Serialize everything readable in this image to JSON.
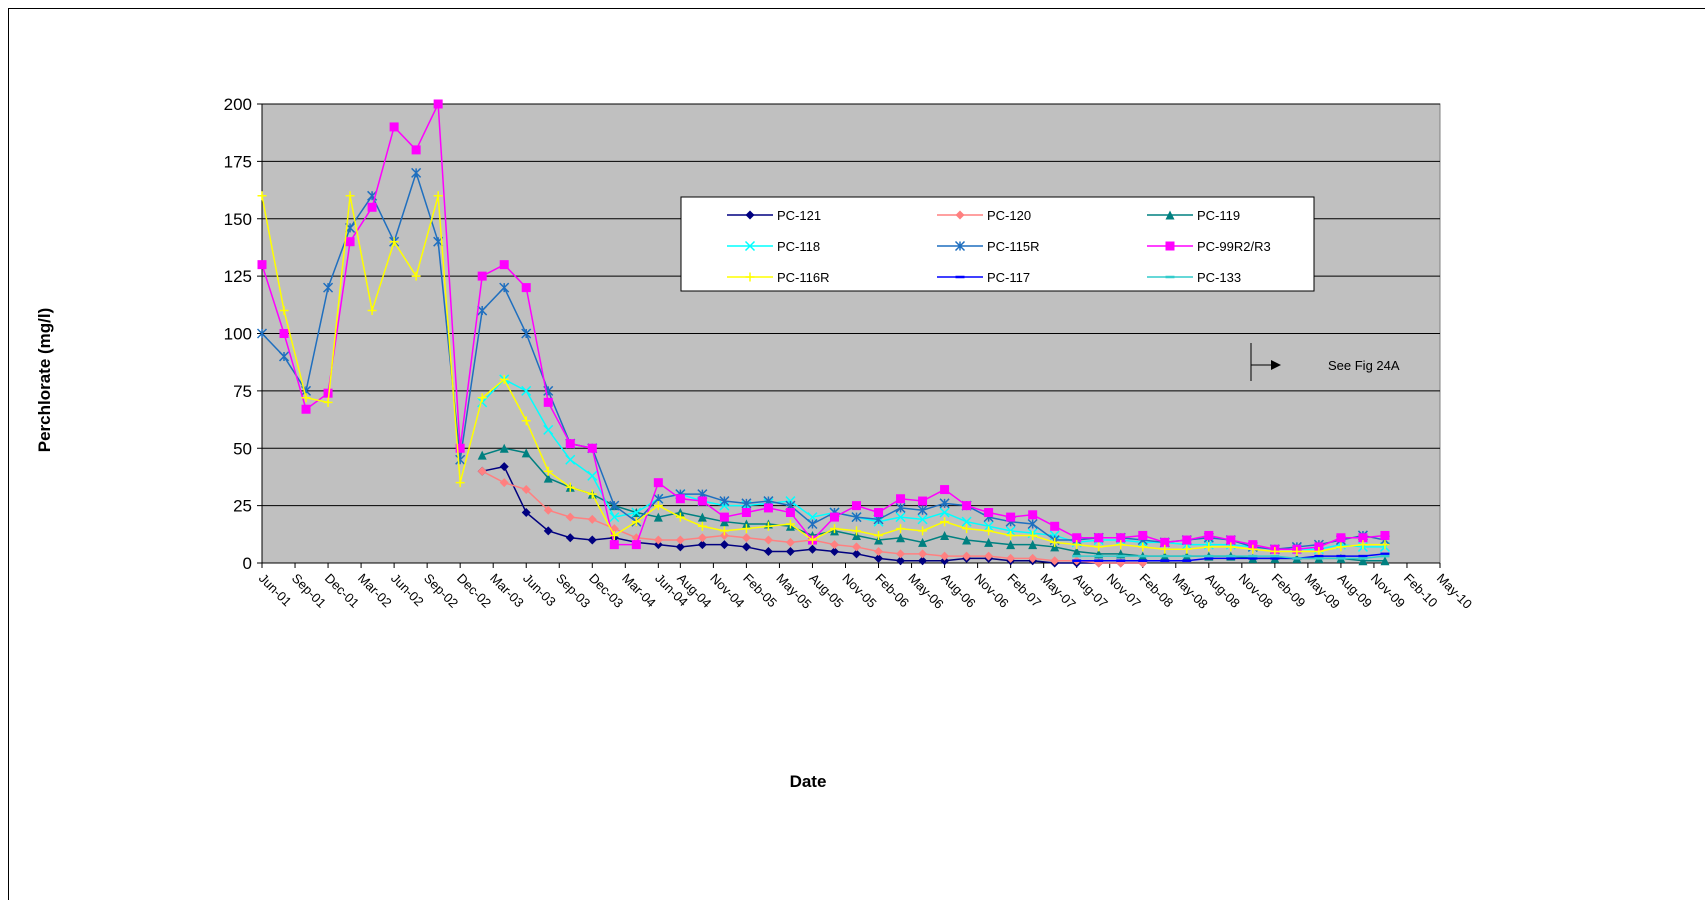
{
  "chart_data": {
    "type": "line",
    "y_label": "Perchlorate (mg/l)",
    "x_label": "Date",
    "annotation": "See Fig 24A",
    "x": [
      "2001-06",
      "2001-08",
      "2001-10",
      "2001-12",
      "2002-02",
      "2002-04",
      "2002-06",
      "2002-08",
      "2002-10",
      "2002-12",
      "2003-02",
      "2003-04",
      "2003-06",
      "2003-08",
      "2003-10",
      "2003-12",
      "2004-02",
      "2004-04",
      "2004-06",
      "2004-08",
      "2004-10",
      "2004-12",
      "2005-02",
      "2005-04",
      "2005-06",
      "2005-08",
      "2005-10",
      "2005-12",
      "2006-02",
      "2006-04",
      "2006-06",
      "2006-08",
      "2006-10",
      "2006-12",
      "2007-02",
      "2007-04",
      "2007-06",
      "2007-08",
      "2007-10",
      "2007-12",
      "2008-02",
      "2008-04",
      "2008-06",
      "2008-08",
      "2008-10",
      "2008-12",
      "2009-02",
      "2009-04",
      "2009-06",
      "2009-08",
      "2009-10",
      "2009-12"
    ],
    "series": [
      {
        "name": "PC-121",
        "color": "#000080",
        "marker": "diamond",
        "values": [
          null,
          null,
          null,
          null,
          null,
          null,
          null,
          null,
          null,
          null,
          40,
          42,
          22,
          14,
          11,
          10,
          11,
          9,
          8,
          7,
          8,
          8,
          7,
          5,
          5,
          6,
          5,
          4,
          2,
          1,
          1,
          1,
          2,
          2,
          1,
          1,
          0,
          0,
          0,
          0,
          0,
          null,
          null,
          null,
          null,
          null,
          null,
          null,
          null,
          null,
          null,
          null
        ]
      },
      {
        "name": "PC-120",
        "color": "#ff8080",
        "marker": "diamond",
        "values": [
          null,
          null,
          null,
          null,
          null,
          null,
          null,
          null,
          null,
          null,
          40,
          35,
          32,
          23,
          20,
          19,
          15,
          11,
          10,
          10,
          11,
          12,
          11,
          10,
          9,
          10,
          8,
          7,
          5,
          4,
          4,
          3,
          3,
          3,
          2,
          2,
          1,
          1,
          0,
          0,
          0,
          null,
          null,
          null,
          null,
          null,
          null,
          null,
          null,
          null,
          null,
          null
        ]
      },
      {
        "name": "PC-119",
        "color": "#008080",
        "marker": "triangle",
        "values": [
          null,
          null,
          null,
          null,
          null,
          null,
          null,
          null,
          null,
          null,
          47,
          50,
          48,
          37,
          33,
          30,
          25,
          22,
          20,
          22,
          20,
          18,
          17,
          17,
          16,
          12,
          14,
          12,
          10,
          11,
          9,
          12,
          10,
          9,
          8,
          8,
          7,
          5,
          4,
          4,
          3,
          3,
          3,
          3,
          3,
          2,
          2,
          2,
          2,
          2,
          1,
          1
        ]
      },
      {
        "name": "PC-118",
        "color": "#00ffff",
        "marker": "x",
        "values": [
          null,
          null,
          null,
          null,
          null,
          null,
          null,
          null,
          null,
          null,
          70,
          80,
          75,
          58,
          45,
          38,
          20,
          22,
          28,
          30,
          27,
          25,
          25,
          26,
          27,
          20,
          22,
          20,
          18,
          20,
          19,
          22,
          18,
          16,
          14,
          13,
          12,
          9,
          10,
          10,
          9,
          9,
          8,
          8,
          8,
          7,
          6,
          6,
          6,
          8,
          7,
          7
        ]
      },
      {
        "name": "PC-115R",
        "color": "#1f6fbf",
        "marker": "star",
        "values": [
          100,
          90,
          75,
          120,
          146,
          160,
          140,
          170,
          140,
          45,
          110,
          120,
          100,
          75,
          52,
          50,
          25,
          18,
          28,
          30,
          30,
          27,
          26,
          27,
          25,
          17,
          22,
          20,
          19,
          24,
          23,
          26,
          25,
          20,
          18,
          17,
          10,
          10,
          11,
          11,
          10,
          9,
          10,
          11,
          10,
          7,
          6,
          7,
          8,
          10,
          12,
          10
        ]
      },
      {
        "name": "PC-99R2/R3",
        "color": "#ff00ff",
        "marker": "square",
        "values": [
          130,
          100,
          67,
          74,
          140,
          155,
          190,
          180,
          200,
          50,
          125,
          130,
          120,
          70,
          52,
          50,
          8,
          8,
          35,
          28,
          27,
          20,
          22,
          24,
          22,
          10,
          20,
          25,
          22,
          28,
          27,
          32,
          25,
          22,
          20,
          21,
          16,
          11,
          11,
          11,
          12,
          9,
          10,
          12,
          10,
          8,
          6,
          6,
          7,
          11,
          11,
          12
        ]
      },
      {
        "name": "PC-116R",
        "color": "#ffff00",
        "marker": "plus",
        "values": [
          160,
          110,
          72,
          70,
          160,
          110,
          140,
          125,
          160,
          35,
          72,
          80,
          62,
          40,
          33,
          30,
          12,
          18,
          25,
          20,
          16,
          14,
          15,
          16,
          17,
          10,
          15,
          14,
          12,
          15,
          14,
          18,
          15,
          14,
          12,
          12,
          9,
          8,
          7,
          8,
          7,
          6,
          6,
          7,
          7,
          6,
          5,
          5,
          5,
          7,
          8,
          8
        ]
      },
      {
        "name": "PC-117",
        "color": "#0000ff",
        "marker": "dash",
        "values": [
          null,
          null,
          null,
          null,
          null,
          null,
          null,
          null,
          null,
          null,
          null,
          null,
          null,
          null,
          null,
          null,
          null,
          null,
          null,
          null,
          null,
          null,
          null,
          null,
          null,
          null,
          null,
          null,
          null,
          null,
          null,
          null,
          null,
          null,
          null,
          null,
          null,
          1,
          1,
          1,
          1,
          1,
          1,
          2,
          2,
          2,
          2,
          2,
          3,
          3,
          3,
          4
        ]
      },
      {
        "name": "PC-133",
        "color": "#33cccc",
        "marker": "dash",
        "values": [
          null,
          null,
          null,
          null,
          null,
          null,
          null,
          null,
          null,
          null,
          null,
          null,
          null,
          null,
          null,
          null,
          null,
          null,
          null,
          null,
          null,
          null,
          null,
          null,
          null,
          null,
          null,
          null,
          null,
          null,
          null,
          null,
          null,
          null,
          null,
          null,
          null,
          3,
          3,
          3,
          3,
          3,
          3,
          3,
          3,
          3,
          3,
          2,
          2,
          2,
          2,
          3
        ]
      }
    ],
    "xlim": [
      "2001-06",
      "2010-05"
    ],
    "xticks": [
      {
        "value": "2001-06",
        "label": "Jun-01"
      },
      {
        "value": "2001-09",
        "label": "Sep-01"
      },
      {
        "value": "2001-12",
        "label": "Dec-01"
      },
      {
        "value": "2002-03",
        "label": "Mar-02"
      },
      {
        "value": "2002-06",
        "label": "Jun-02"
      },
      {
        "value": "2002-09",
        "label": "Sep-02"
      },
      {
        "value": "2002-12",
        "label": "Dec-02"
      },
      {
        "value": "2003-03",
        "label": "Mar-03"
      },
      {
        "value": "2003-06",
        "label": "Jun-03"
      },
      {
        "value": "2003-09",
        "label": "Sep-03"
      },
      {
        "value": "2003-12",
        "label": "Dec-03"
      },
      {
        "value": "2004-03",
        "label": "Mar-04"
      },
      {
        "value": "2004-06",
        "label": "Jun-04"
      },
      {
        "value": "2004-08",
        "label": "Aug-04"
      },
      {
        "value": "2004-11",
        "label": "Nov-04"
      },
      {
        "value": "2005-02",
        "label": "Feb-05"
      },
      {
        "value": "2005-05",
        "label": "May-05"
      },
      {
        "value": "2005-08",
        "label": "Aug-05"
      },
      {
        "value": "2005-11",
        "label": "Nov-05"
      },
      {
        "value": "2006-02",
        "label": "Feb-06"
      },
      {
        "value": "2006-05",
        "label": "May-06"
      },
      {
        "value": "2006-08",
        "label": "Aug-06"
      },
      {
        "value": "2006-11",
        "label": "Nov-06"
      },
      {
        "value": "2007-02",
        "label": "Feb-07"
      },
      {
        "value": "2007-05",
        "label": "May-07"
      },
      {
        "value": "2007-08",
        "label": "Aug-07"
      },
      {
        "value": "2007-11",
        "label": "Nov-07"
      },
      {
        "value": "2008-02",
        "label": "Feb-08"
      },
      {
        "value": "2008-05",
        "label": "May-08"
      },
      {
        "value": "2008-08",
        "label": "Aug-08"
      },
      {
        "value": "2008-11",
        "label": "Nov-08"
      },
      {
        "value": "2009-02",
        "label": "Feb-09"
      },
      {
        "value": "2009-05",
        "label": "May-09"
      },
      {
        "value": "2009-08",
        "label": "Aug-09"
      },
      {
        "value": "2009-11",
        "label": "Nov-09"
      },
      {
        "value": "2010-02",
        "label": "Feb-10"
      },
      {
        "value": "2010-05",
        "label": "May-10"
      }
    ],
    "ylim": [
      0,
      200
    ],
    "yticks": [
      0,
      25,
      50,
      75,
      100,
      125,
      150,
      175,
      200
    ],
    "grid": true,
    "plot_background": "#c0c0c0"
  }
}
